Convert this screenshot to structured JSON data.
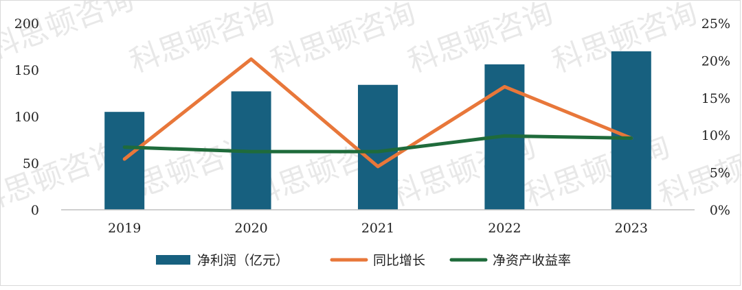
{
  "watermark": "科思顿咨询",
  "colors": {
    "bar": "#17607f",
    "growth_line": "#e8773a",
    "roe_line": "#1f6b3b",
    "axis": "#bfbfbf"
  },
  "chart_data": {
    "type": "bar",
    "categories": [
      "2019",
      "2020",
      "2021",
      "2022",
      "2023"
    ],
    "series": [
      {
        "name": "净利润（亿元）",
        "type": "bar",
        "axis": "left",
        "values": [
          105,
          127,
          134,
          156,
          170
        ]
      },
      {
        "name": "同比增长",
        "type": "line",
        "axis": "right",
        "values": [
          6.8,
          20.2,
          5.8,
          16.5,
          9.6
        ]
      },
      {
        "name": "净资产收益率",
        "type": "line",
        "axis": "right",
        "values": [
          8.4,
          7.8,
          7.8,
          9.9,
          9.6
        ]
      }
    ],
    "left_axis": {
      "ylim": [
        0,
        200
      ],
      "ticks": [
        "0",
        "50",
        "100",
        "150",
        "200"
      ]
    },
    "right_axis": {
      "ylim": [
        0,
        25
      ],
      "ticks": [
        "0%",
        "5%",
        "10%",
        "15%",
        "20%",
        "25%"
      ]
    },
    "grid": false,
    "legend": "bottom"
  }
}
